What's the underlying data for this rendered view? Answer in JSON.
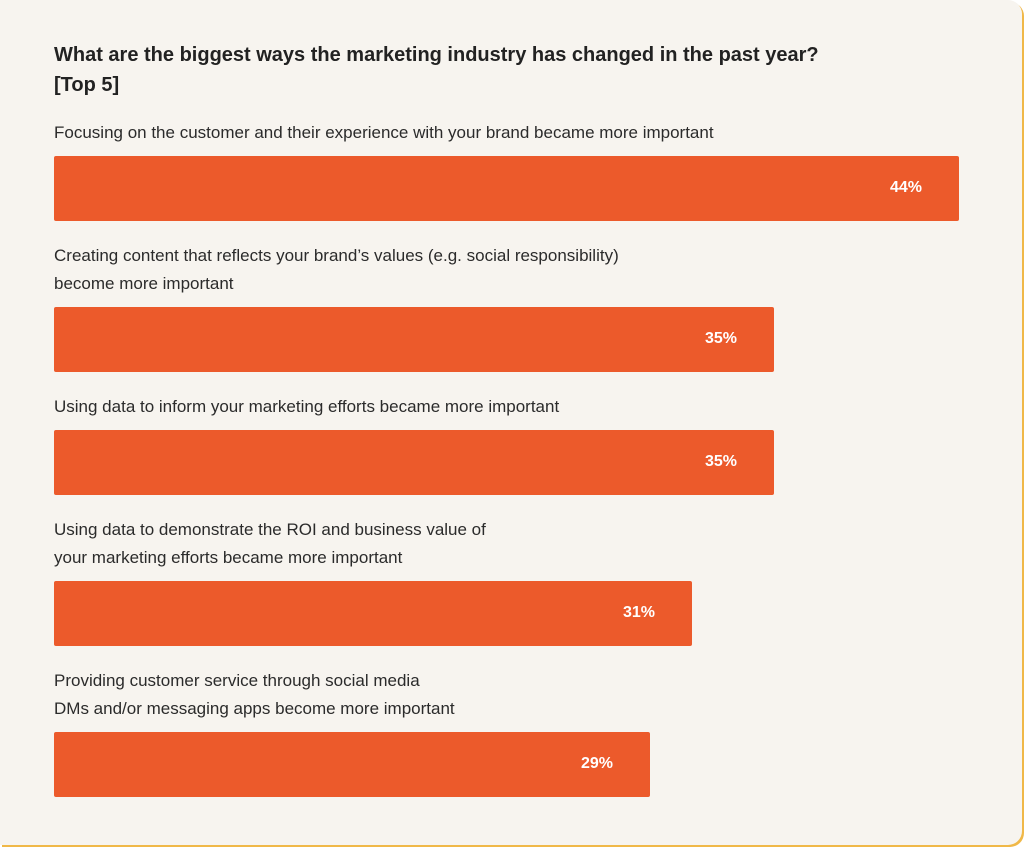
{
  "chart_data": {
    "type": "bar",
    "orientation": "horizontal",
    "title": "What are the biggest ways the marketing industry has changed in the past year? [Top 5]",
    "categories": [
      "Focusing on the customer and their experience with your brand became more important",
      "Creating content that reflects your brand’s values (e.g. social responsibility) become more important",
      "Using data to inform your marketing efforts became more important",
      "Using data to demonstrate the ROI and business value of your marketing efforts became more important",
      "Providing customer service through social media DMs and/or messaging apps become more important"
    ],
    "label_lines": [
      [
        "Focusing on the customer and their experience with your brand became more important"
      ],
      [
        "Creating content that reflects your brand’s values (e.g. social responsibility)",
        "become more important"
      ],
      [
        "Using data to inform your marketing efforts became more important"
      ],
      [
        "Using data to demonstrate the ROI and business value of",
        "your marketing efforts became more important"
      ],
      [
        "Providing customer service through social media",
        "DMs and/or messaging apps become more important"
      ]
    ],
    "values": [
      44,
      35,
      35,
      31,
      29
    ],
    "value_labels": [
      "44%",
      "35%",
      "35%",
      "31%",
      "29%"
    ],
    "unit": "%",
    "grid": false,
    "bar_color": "#ec5a2b",
    "background_color": "#f7f4ef"
  }
}
